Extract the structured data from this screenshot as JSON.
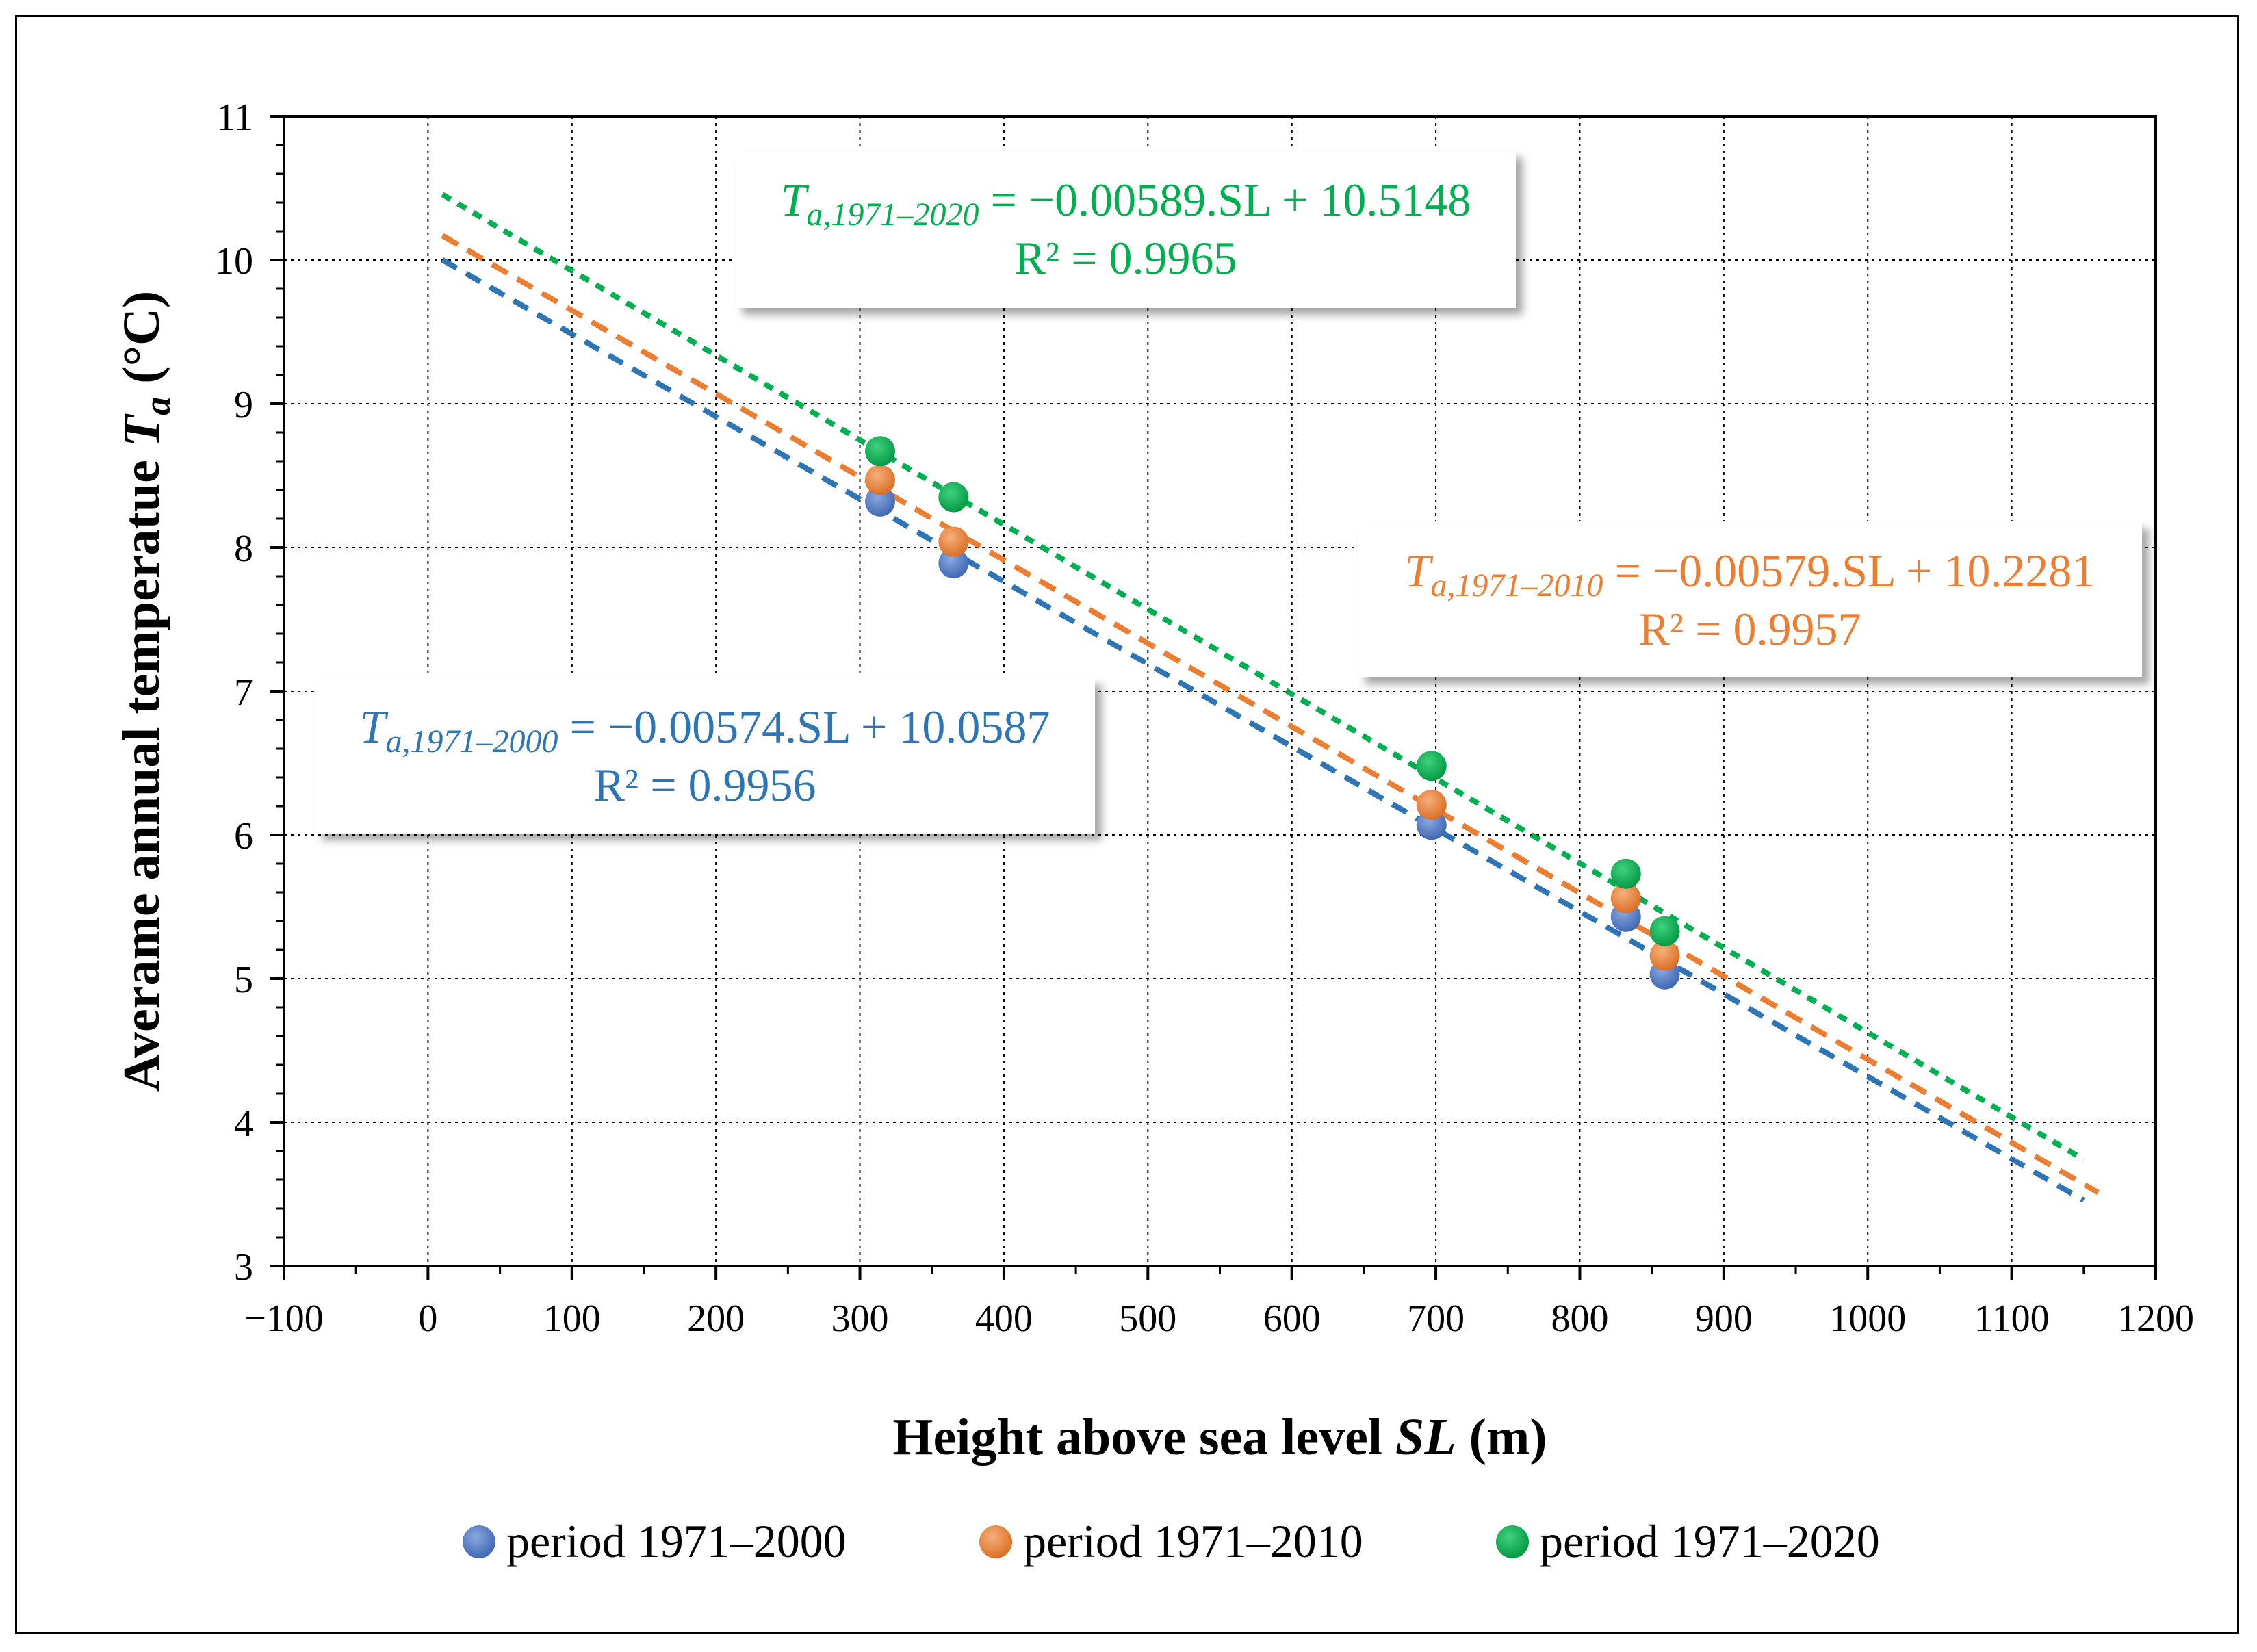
{
  "chart_data": {
    "type": "scatter",
    "title": "",
    "xlabel_main": "Height above sea level ",
    "xlabel_var": "SL",
    "xlabel_unit": " (m)",
    "ylabel_main": "Averame annual temperatue ",
    "ylabel_var": "T",
    "ylabel_sub": "a",
    "ylabel_unit": "  (°C)",
    "xlim": [
      -100,
      1200
    ],
    "ylim": [
      3,
      11
    ],
    "x_ticks": [
      -100,
      0,
      100,
      200,
      300,
      400,
      500,
      600,
      700,
      800,
      900,
      1000,
      1100,
      1200
    ],
    "x_tick_labels": [
      "−100",
      "0",
      "100",
      "200",
      "300",
      "400",
      "500",
      "600",
      "700",
      "800",
      "900",
      "1000",
      "1100",
      "1200"
    ],
    "y_ticks": [
      3,
      4,
      5,
      6,
      7,
      8,
      9,
      10,
      11
    ],
    "y_tick_labels": [
      "3",
      "4",
      "5",
      "6",
      "7",
      "8",
      "9",
      "10",
      "11"
    ],
    "grid": true,
    "legend_position": "bottom",
    "series": [
      {
        "name": "period 1971–2000",
        "color": "#4472C4",
        "trend_color": "#2E75B6",
        "x": [
          314,
          365,
          697,
          832,
          859
        ],
        "y": [
          8.32,
          7.89,
          6.07,
          5.43,
          5.03
        ],
        "trendline": {
          "slope": -0.00574,
          "intercept": 10.0587,
          "x_range": [
            10,
            1150
          ]
        }
      },
      {
        "name": "period 1971–2010",
        "color": "#ED7D31",
        "trend_color": "#ED7D31",
        "x": [
          314,
          365,
          697,
          832,
          859
        ],
        "y": [
          8.47,
          8.04,
          6.21,
          5.56,
          5.16
        ],
        "trendline": {
          "slope": -0.00579,
          "intercept": 10.2281,
          "x_range": [
            10,
            1160
          ]
        }
      },
      {
        "name": "period 1971–2020",
        "color": "#00B050",
        "trend_color": "#00B050",
        "x": [
          314,
          365,
          697,
          832,
          859
        ],
        "y": [
          8.67,
          8.35,
          6.48,
          5.73,
          5.33
        ],
        "trendline": {
          "slope": -0.00589,
          "intercept": 10.5148,
          "x_range": [
            10,
            1150
          ]
        }
      }
    ],
    "annotations": [
      {
        "series": "period 1971–2020",
        "color": "#00B050",
        "var": "T",
        "sub": "a,1971–2020",
        "equation": " = −0.00589.SL + 10.5148",
        "r2": "R² = 0.9965"
      },
      {
        "series": "period 1971–2010",
        "color": "#ED7D31",
        "var": "T",
        "sub": "a,1971–2010",
        "equation": " = −0.00579.SL + 10.2281",
        "r2": "R² = 0.9957"
      },
      {
        "series": "period 1971–2000",
        "color": "#2E75B6",
        "var": "T",
        "sub": "a,1971–2000",
        "equation": " = −0.00574.SL + 10.0587",
        "r2": "R² = 0.9956"
      }
    ]
  }
}
